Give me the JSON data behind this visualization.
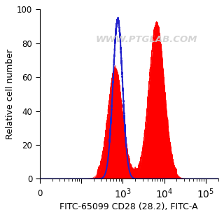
{
  "xlabel": "FITC-65099 CD28 (28.2), FITC-A",
  "ylabel": "Relative cell number",
  "ylim": [
    0,
    100
  ],
  "yticks": [
    0,
    20,
    40,
    60,
    80,
    100
  ],
  "watermark": "WWW.PTGLAB.COM",
  "blue_peak_log": 2.88,
  "blue_peak_height": 94,
  "blue_sigma": 0.115,
  "red_peak1_log": 2.82,
  "red_peak1_height": 64,
  "red_peak1_sigma": 0.175,
  "red_peak2_log": 3.82,
  "red_peak2_height": 91,
  "red_peak2_sigma": 0.185,
  "red_color": "#FF0000",
  "blue_color": "#2222CC",
  "bg_color": "#FFFFFF",
  "xlabel_fontsize": 9,
  "ylabel_fontsize": 9,
  "tick_fontsize": 8.5,
  "xmin": 10,
  "xmax": 200000
}
